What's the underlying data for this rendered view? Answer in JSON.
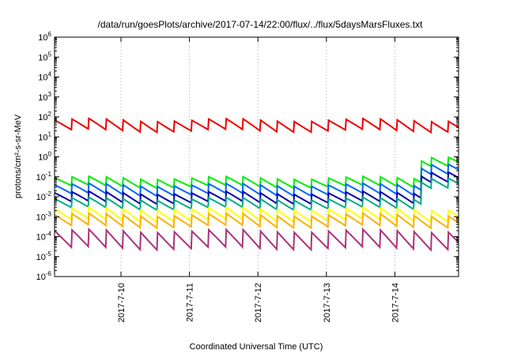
{
  "chart_data": {
    "type": "line",
    "title": "/data/run/goesPlots/archive/2017-07-14/22:00/flux/../flux/5daysMarsFluxes.txt",
    "xlabel": "Coordinated Universal Time (UTC)",
    "ylabel": "protons/cm²-s-sr-MeV",
    "yscale": "log",
    "ylim": [
      -6,
      6
    ],
    "y_ticks": [
      -6,
      -5,
      -4,
      -3,
      -2,
      -1,
      0,
      1,
      2,
      3,
      4,
      5,
      6
    ],
    "x_days_range": [
      0,
      5.9
    ],
    "x_ticks": [
      {
        "pos": 0.97,
        "label": "2017-7-10"
      },
      {
        "pos": 1.97,
        "label": "2017-7-11"
      },
      {
        "pos": 2.97,
        "label": "2017-7-12"
      },
      {
        "pos": 3.97,
        "label": "2017-7-13"
      },
      {
        "pos": 4.97,
        "label": "2017-7-14"
      }
    ],
    "grid": true,
    "series": [
      {
        "color": "#ee0000",
        "base": 1.3,
        "amp": 0.55,
        "width": 2
      },
      {
        "color": "#00ee00",
        "base": -1.5,
        "amp": 0.45,
        "width": 2
      },
      {
        "color": "#0066ff",
        "base": -1.9,
        "amp": 0.5,
        "width": 2
      },
      {
        "color": "#0000aa",
        "base": -2.3,
        "amp": 0.5,
        "width": 2
      },
      {
        "color": "#00aa88",
        "base": -2.6,
        "amp": 0.5,
        "width": 2
      },
      {
        "color": "#ffff00",
        "base": -3.2,
        "amp": 0.6,
        "width": 2
      },
      {
        "color": "#ffb000",
        "base": -3.5,
        "amp": 0.6,
        "width": 2
      },
      {
        "color": "#aa3377",
        "base": -4.6,
        "amp": 0.9,
        "width": 2
      }
    ]
  }
}
